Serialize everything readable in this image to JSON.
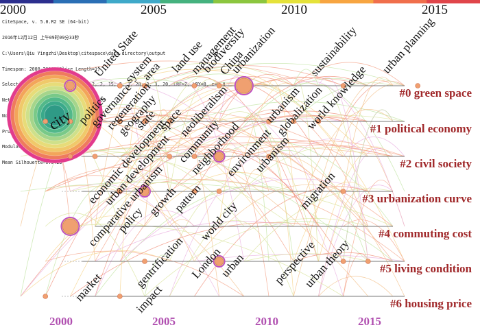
{
  "header": {
    "years_top": [
      "2000",
      "2005",
      "2010",
      "2015"
    ],
    "years_bottom": [
      "2000",
      "2005",
      "2010",
      "2015"
    ],
    "colors": [
      "#2c2f8e",
      "#2b6fb5",
      "#3fa9c9",
      "#45b27f",
      "#8cc63f",
      "#e5e23a",
      "#f7a541",
      "#f06f4c",
      "#e0454a"
    ]
  },
  "info_lines": [
    "CiteSpace, v. 5.0.R2 SE (64-bit)",
    "2016年12月12日 上午09时09分33秒",
    "C:\\Users\\Qiu Yingzhi\\Desktop\\citespace\\data directory\\output",
    "Timespan: 2000-2016 (Slice Length=1)",
    "Selection Criteria (c, cc, ccv): 2, 2, 15; 3, 3, 20; 3, 3, 20, LRF=2, LBY=8, e=0.0",
    "Network: N=158, E=630 (Density=0.0508)",
    "Nodes Labeled: 0.0%",
    "Pruning: None",
    "Modularity Q=0.4367",
    "Mean Silhouette=0.5423"
  ],
  "clusters": [
    {
      "label": "#0 green space",
      "year_range": [
        2001,
        2016
      ]
    },
    {
      "label": "#1 political economy",
      "year_range": [
        2002,
        2016
      ]
    },
    {
      "label": "#2 civil society",
      "year_range": [
        2002,
        2016
      ]
    },
    {
      "label": "#3 urbanization curve",
      "year_range": [
        2000,
        2015
      ]
    },
    {
      "label": "#4 commuting cost",
      "year_range": [
        2003,
        2015
      ]
    },
    {
      "label": "#5 living condition",
      "year_range": [
        2000,
        2016
      ]
    },
    {
      "label": "#6 housing price",
      "year_range": [
        2000,
        2016
      ]
    }
  ],
  "keywords": [
    {
      "text": "city",
      "year": 2000,
      "cluster": 0,
      "size": "big",
      "node": "huge"
    },
    {
      "text": "United State",
      "year": 2002,
      "cluster": 0,
      "node": "m"
    },
    {
      "text": "system",
      "year": 2004,
      "cluster": 0,
      "node": "s"
    },
    {
      "text": "area",
      "year": 2004,
      "cluster": 0,
      "node": "s"
    },
    {
      "text": "land use",
      "year": 2005,
      "cluster": 0,
      "node": "s"
    },
    {
      "text": "management",
      "year": 2007,
      "cluster": 0,
      "node": "s"
    },
    {
      "text": "biodiversity",
      "year": 2008,
      "cluster": 0,
      "node": "s"
    },
    {
      "text": "China",
      "year": 2009,
      "cluster": 0,
      "node": "l"
    },
    {
      "text": "urbanization",
      "year": 2009,
      "cluster": 0,
      "node": "l"
    },
    {
      "text": "sustainability",
      "year": 2013,
      "cluster": 0,
      "node": "s"
    },
    {
      "text": "urban planning",
      "year": 2016,
      "cluster": 0,
      "node": "s"
    },
    {
      "text": "politics",
      "year": 2001,
      "cluster": 1,
      "node": "s"
    },
    {
      "text": "governance",
      "year": 2002,
      "cluster": 1,
      "node": "s"
    },
    {
      "text": "regeneration",
      "year": 2003,
      "cluster": 1,
      "node": "s"
    },
    {
      "text": "geography",
      "year": 2003,
      "cluster": 1,
      "node": "s"
    },
    {
      "text": "state",
      "year": 2004,
      "cluster": 1,
      "node": "s"
    },
    {
      "text": "space",
      "year": 2005,
      "cluster": 1,
      "node": "s"
    },
    {
      "text": "neoliberalism",
      "year": 2006,
      "cluster": 1,
      "node": "s"
    },
    {
      "text": "urbanism",
      "year": 2010,
      "cluster": 1,
      "node": "s"
    },
    {
      "text": "globalization",
      "year": 2011,
      "cluster": 1,
      "node": "s"
    },
    {
      "text": "world knowledge",
      "year": 2012,
      "cluster": 1,
      "node": "s"
    },
    {
      "text": "economic development",
      "year": 2002,
      "cluster": 2,
      "node": "s"
    },
    {
      "text": "urban development",
      "year": 2003,
      "cluster": 2,
      "node": "s"
    },
    {
      "text": "community",
      "year": 2006,
      "cluster": 2,
      "node": "s"
    },
    {
      "text": "neighborhood",
      "year": 2007,
      "cluster": 2,
      "node": "s"
    },
    {
      "text": "environment",
      "year": 2008,
      "cluster": 2,
      "node": "m"
    },
    {
      "text": "urbanism",
      "year": 2010,
      "cluster": 2,
      "node": "s"
    },
    {
      "text": "comparative urbanism",
      "year": 2004,
      "cluster": 3,
      "node": "s"
    },
    {
      "text": "growth",
      "year": 2005,
      "cluster": 3,
      "node": "m"
    },
    {
      "text": "pattern",
      "year": 2007,
      "cluster": 3,
      "node": "s"
    },
    {
      "text": "world city",
      "year": 2008,
      "cluster": 3,
      "node": "s"
    },
    {
      "text": "migration",
      "year": 2013,
      "cluster": 3,
      "node": "s"
    },
    {
      "text": "policy",
      "year": 2002,
      "cluster": 4,
      "node": "l"
    },
    {
      "text": "gentrification",
      "year": 2005,
      "cluster": 5,
      "node": "s"
    },
    {
      "text": "London",
      "year": 2008,
      "cluster": 5,
      "node": "s"
    },
    {
      "text": "urban",
      "year": 2008,
      "cluster": 5,
      "node": "m"
    },
    {
      "text": "perspective",
      "year": 2013,
      "cluster": 5,
      "node": "s"
    },
    {
      "text": "urban theory",
      "year": 2014,
      "cluster": 5,
      "node": "s"
    },
    {
      "text": "market",
      "year": 2001,
      "cluster": 6,
      "node": "s"
    },
    {
      "text": "impact",
      "year": 2004,
      "cluster": 6,
      "node": "s"
    }
  ]
}
